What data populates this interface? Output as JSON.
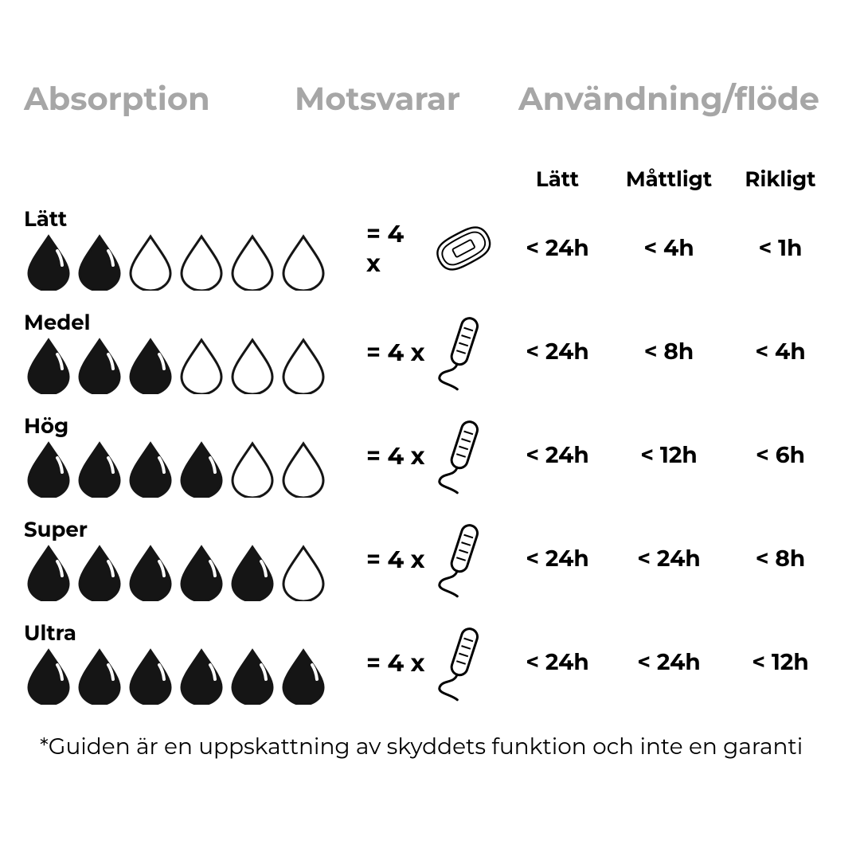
{
  "type": "infographic",
  "background_color": "#ffffff",
  "text_color": "#000000",
  "header_color": "#a6a6a6",
  "drop_fill_color": "#151515",
  "drop_stroke_color": "#151515",
  "icon_stroke_color": "#000000",
  "drop_highlight_color": "#ffffff",
  "font_family": "Montserrat, sans-serif",
  "headers": {
    "absorption": "Absorption",
    "equivalent": "Motsvarar",
    "usage": "Användning/flöde"
  },
  "usage_labels": {
    "light": "Lätt",
    "moderate": "Måttligt",
    "heavy": "Rikligt"
  },
  "equivalent_prefix": "= 4 x",
  "drop_count_max": 6,
  "rows": [
    {
      "label": "Lätt",
      "drops_filled": 2,
      "equivalent_icon": "pad",
      "usage": {
        "light": "< 24h",
        "moderate": "< 4h",
        "heavy": "< 1h"
      }
    },
    {
      "label": "Medel",
      "drops_filled": 3,
      "equivalent_icon": "tampon",
      "usage": {
        "light": "< 24h",
        "moderate": "< 8h",
        "heavy": "< 4h"
      }
    },
    {
      "label": "Hög",
      "drops_filled": 4,
      "equivalent_icon": "tampon",
      "usage": {
        "light": "< 24h",
        "moderate": "< 12h",
        "heavy": "< 6h"
      }
    },
    {
      "label": "Super",
      "drops_filled": 5,
      "equivalent_icon": "tampon",
      "usage": {
        "light": "< 24h",
        "moderate": "< 24h",
        "heavy": "< 8h"
      }
    },
    {
      "label": "Ultra",
      "drops_filled": 6,
      "equivalent_icon": "tampon",
      "usage": {
        "light": "< 24h",
        "moderate": "< 24h",
        "heavy": "< 12h"
      }
    }
  ],
  "footnote": "*Guiden är en uppskattning av skyddets funktion och inte en garanti"
}
